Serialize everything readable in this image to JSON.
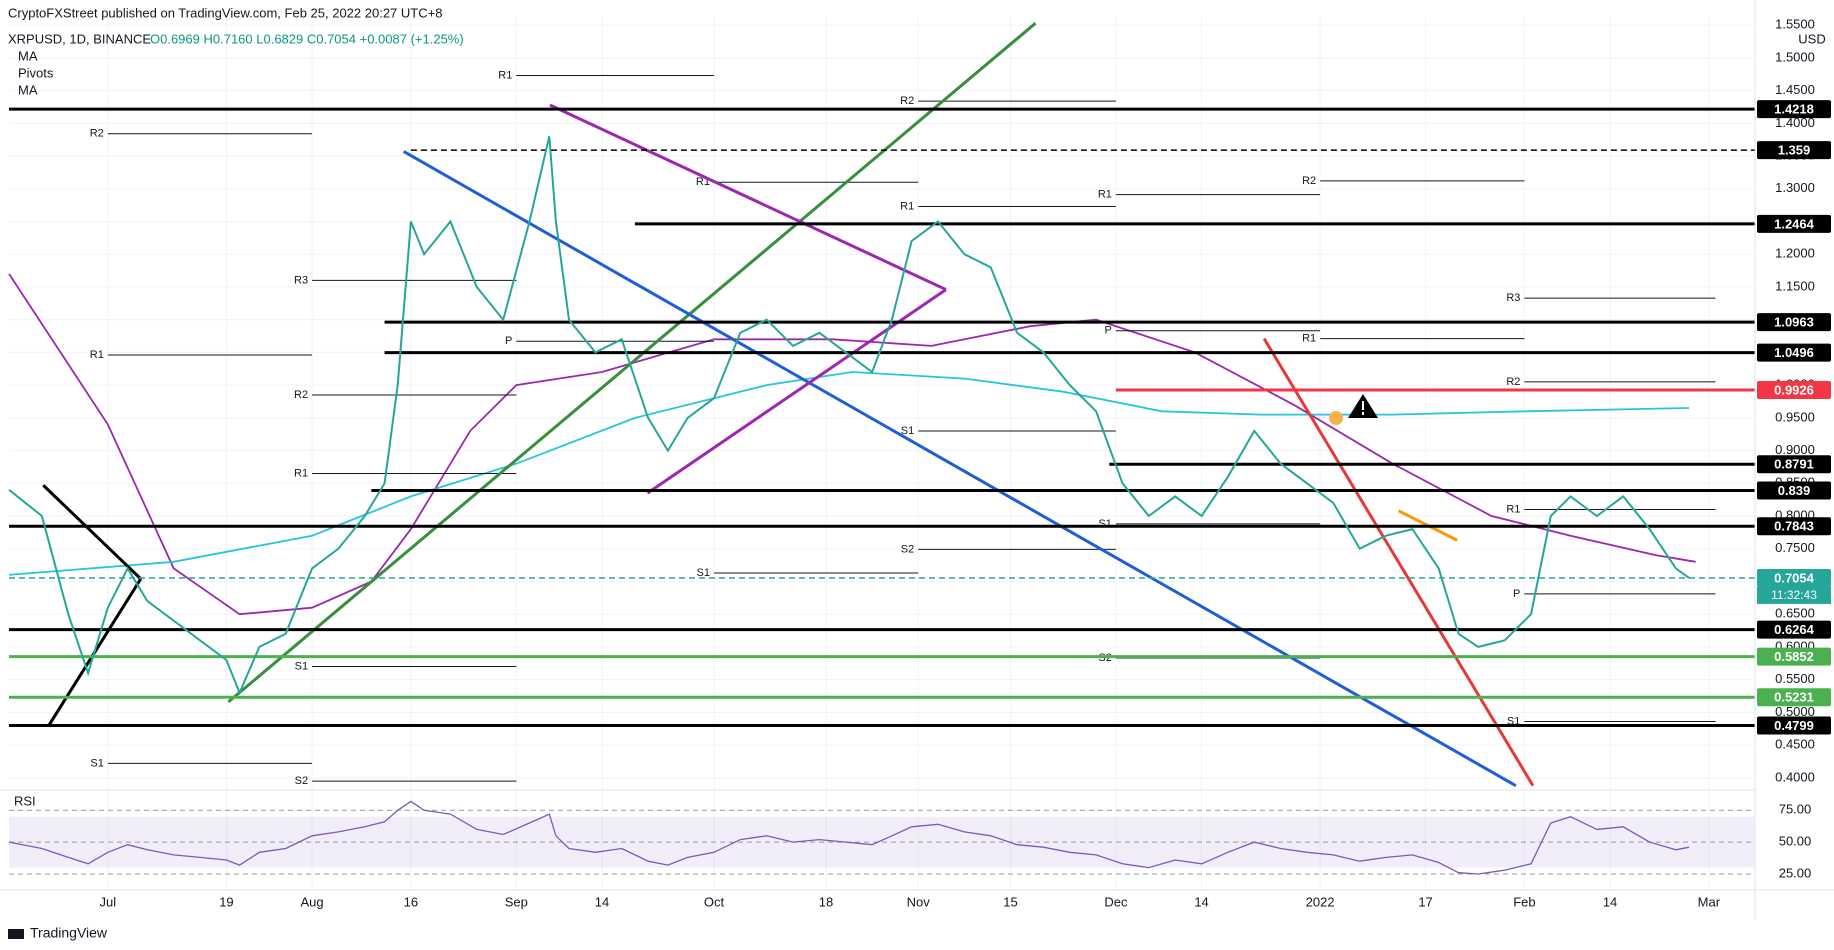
{
  "header": {
    "publisher": "CryptoFXStreet published on TradingView.com, Feb 25, 2022 20:27 UTC+8",
    "symbol": "XRPUSD, 1D, BINANCE",
    "ohlc": "O0.6969 H0.7160 L0.6829 C0.7054 +0.0087 (+1.25%)",
    "indicators": [
      "MA",
      "Pivots",
      "MA"
    ],
    "currency": "USD",
    "countdown": "11:32:43",
    "footer": "TradingView"
  },
  "chart_data": [
    {
      "type": "line",
      "x": [
        -15,
        -10,
        -6,
        -3,
        0,
        3,
        6,
        10,
        14,
        18,
        20,
        23,
        27,
        31,
        35,
        39,
        42,
        44,
        46,
        48,
        52,
        56,
        60,
        64,
        67,
        68,
        70,
        74,
        78,
        82,
        85,
        88,
        92,
        96,
        100,
        104,
        108,
        112,
        116,
        119,
        122,
        126,
        130,
        134,
        138,
        142,
        146,
        150,
        154,
        158,
        162,
        166,
        170,
        174,
        178,
        182,
        186,
        190,
        194,
        198,
        202,
        205,
        208,
        212,
        216,
        219,
        222,
        226,
        230,
        234,
        238,
        240
      ],
      "series": [
        {
          "name": "XRPUSD",
          "color": "#26a69a",
          "values": [
            0.84,
            0.8,
            0.65,
            0.56,
            0.66,
            0.72,
            0.67,
            0.64,
            0.61,
            0.58,
            0.53,
            0.6,
            0.62,
            0.72,
            0.75,
            0.8,
            0.85,
            1.0,
            1.25,
            1.2,
            1.25,
            1.15,
            1.1,
            1.25,
            1.38,
            1.25,
            1.1,
            1.05,
            1.07,
            0.95,
            0.9,
            0.95,
            0.98,
            1.08,
            1.1,
            1.06,
            1.08,
            1.05,
            1.02,
            1.1,
            1.22,
            1.25,
            1.2,
            1.18,
            1.08,
            1.05,
            1.0,
            0.96,
            0.85,
            0.8,
            0.83,
            0.8,
            0.86,
            0.93,
            0.88,
            0.85,
            0.82,
            0.75,
            0.77,
            0.78,
            0.72,
            0.62,
            0.6,
            0.61,
            0.65,
            0.8,
            0.83,
            0.8,
            0.83,
            0.78,
            0.72,
            0.7054
          ]
        }
      ],
      "moving_averages": [
        {
          "name": "MA",
          "color": "#9c27b0",
          "x": [
            -15,
            0,
            10,
            20,
            31,
            40,
            46,
            55,
            62,
            75,
            92,
            110,
            125,
            140,
            150,
            165,
            180,
            195,
            210,
            222,
            235,
            241
          ],
          "values": [
            1.17,
            0.94,
            0.72,
            0.65,
            0.66,
            0.7,
            0.78,
            0.93,
            1.0,
            1.02,
            1.07,
            1.07,
            1.06,
            1.09,
            1.1,
            1.05,
            0.97,
            0.88,
            0.8,
            0.77,
            0.74,
            0.73
          ]
        },
        {
          "name": "MA",
          "color": "#26c6da",
          "x": [
            -15,
            10,
            31,
            46,
            62,
            80,
            100,
            113,
            130,
            145,
            160,
            175,
            195,
            215,
            240
          ],
          "values": [
            0.71,
            0.73,
            0.77,
            0.83,
            0.88,
            0.95,
            1.0,
            1.02,
            1.01,
            0.99,
            0.96,
            0.955,
            0.955,
            0.96,
            0.965
          ]
        }
      ],
      "trendlines": [
        {
          "color": "#388e3c",
          "x": [
            18.3,
            140.8
          ],
          "values": [
            0.516,
            1.553
          ]
        },
        {
          "color": "#1e5fd8",
          "x": [
            44.9,
            213.7
          ],
          "values": [
            1.357,
            0.388
          ]
        },
        {
          "color": "#e53935",
          "x": [
            175.5,
            216.3
          ],
          "values": [
            1.071,
            0.388
          ]
        },
        {
          "color": "#9c27b0",
          "x": [
            67.1,
            127.2
          ],
          "values": [
            1.428,
            1.146
          ]
        },
        {
          "color": "#9c27b0",
          "x": [
            81.9,
            127.2
          ],
          "values": [
            0.835,
            1.146
          ]
        },
        {
          "color": "#ff9800",
          "x": [
            195.9,
            204.8
          ],
          "values": [
            0.808,
            0.763
          ]
        },
        {
          "color": "#000000",
          "x": [
            -9.8,
            5
          ],
          "values": [
            0.847,
            0.704
          ]
        },
        {
          "color": "#000000",
          "x": [
            5,
            -8.9
          ],
          "values": [
            0.704,
            0.481
          ]
        }
      ],
      "levels": [
        {
          "value": 1.4218,
          "color": "#000000",
          "x_start": -15
        },
        {
          "value": 1.359,
          "color": "#000000",
          "x_start": 46,
          "dashed": true
        },
        {
          "value": 1.2464,
          "color": "#000000",
          "x_start": 80
        },
        {
          "value": 1.0963,
          "color": "#000000",
          "x_start": 42
        },
        {
          "value": 1.0496,
          "color": "#000000",
          "x_start": 42
        },
        {
          "value": 0.9926,
          "color": "#f23645",
          "x_start": 153
        },
        {
          "value": 0.8791,
          "color": "#000000",
          "x_start": 152
        },
        {
          "value": 0.839,
          "color": "#000000",
          "x_start": 40
        },
        {
          "value": 0.7843,
          "color": "#000000",
          "x_start": -15
        },
        {
          "value": 0.7054,
          "color": "#26a69a",
          "x_start": -15,
          "dashed": true
        },
        {
          "value": 0.6264,
          "color": "#000000",
          "x_start": -15
        },
        {
          "value": 0.5852,
          "color": "#4caf50",
          "x_start": -15
        },
        {
          "value": 0.5231,
          "color": "#4caf50",
          "x_start": -15
        },
        {
          "value": 0.4799,
          "color": "#000000",
          "x_start": -15
        }
      ],
      "pivots": [
        {
          "label": "R1",
          "x": [
            62,
            92
          ],
          "value": 1.473
        },
        {
          "label": "R2",
          "x": [
            0,
            31
          ],
          "value": 1.384
        },
        {
          "label": "R3",
          "x": [
            31,
            62
          ],
          "value": 1.16
        },
        {
          "label": "R1",
          "x": [
            0,
            31
          ],
          "value": 1.046
        },
        {
          "label": "R2",
          "x": [
            31,
            62
          ],
          "value": 0.985
        },
        {
          "label": "R1",
          "x": [
            31,
            62
          ],
          "value": 0.865
        },
        {
          "label": "S1",
          "x": [
            31,
            62
          ],
          "value": 0.57
        },
        {
          "label": "S2",
          "x": [
            31,
            62
          ],
          "value": 0.395
        },
        {
          "label": "S1",
          "x": [
            0,
            31
          ],
          "value": 0.422
        },
        {
          "label": "R1",
          "x": [
            92,
            123
          ],
          "value": 1.31
        },
        {
          "label": "P",
          "x": [
            62,
            92
          ],
          "value": 1.067
        },
        {
          "label": "S1",
          "x": [
            92,
            123
          ],
          "value": 0.713
        },
        {
          "label": "R2",
          "x": [
            123,
            153
          ],
          "value": 1.434
        },
        {
          "label": "R1",
          "x": [
            123,
            153
          ],
          "value": 1.273
        },
        {
          "label": "S1",
          "x": [
            123,
            153
          ],
          "value": 0.93
        },
        {
          "label": "S2",
          "x": [
            123,
            153
          ],
          "value": 0.749
        },
        {
          "label": "R1",
          "x": [
            153,
            184
          ],
          "value": 1.291
        },
        {
          "label": "P",
          "x": [
            153,
            184
          ],
          "value": 1.083
        },
        {
          "label": "S1",
          "x": [
            153,
            184
          ],
          "value": 0.788
        },
        {
          "label": "S2",
          "x": [
            153,
            184
          ],
          "value": 0.583
        },
        {
          "label": "R2",
          "x": [
            184,
            215
          ],
          "value": 1.312
        },
        {
          "label": "R1",
          "x": [
            184,
            215
          ],
          "value": 1.071
        },
        {
          "label": "R3",
          "x": [
            215,
            244
          ],
          "value": 1.133
        },
        {
          "label": "R2",
          "x": [
            215,
            244
          ],
          "value": 1.005
        },
        {
          "label": "R1",
          "x": [
            215,
            244
          ],
          "value": 0.81
        },
        {
          "label": "P",
          "x": [
            215,
            244
          ],
          "value": 0.681
        },
        {
          "label": "S1",
          "x": [
            215,
            244
          ],
          "value": 0.486
        }
      ],
      "xlim": [
        -15,
        250
      ],
      "xticks": [
        {
          "value": 0,
          "label": "Jul"
        },
        {
          "value": 18,
          "label": "19"
        },
        {
          "value": 31,
          "label": "Aug"
        },
        {
          "value": 46,
          "label": "16"
        },
        {
          "value": 62,
          "label": "Sep"
        },
        {
          "value": 75,
          "label": "14"
        },
        {
          "value": 92,
          "label": "Oct"
        },
        {
          "value": 109,
          "label": "18"
        },
        {
          "value": 123,
          "label": "Nov"
        },
        {
          "value": 137,
          "label": "15"
        },
        {
          "value": 153,
          "label": "Dec"
        },
        {
          "value": 166,
          "label": "14"
        },
        {
          "value": 184,
          "label": "2022"
        },
        {
          "value": 200,
          "label": "17"
        },
        {
          "value": 215,
          "label": "Feb"
        },
        {
          "value": 228,
          "label": "14"
        },
        {
          "value": 243,
          "label": "Mar"
        }
      ],
      "ylim": [
        0.3875,
        1.564
      ],
      "yticks": [
        {
          "value": 0.4,
          "label": "0.4000"
        },
        {
          "value": 0.45,
          "label": "0.4500"
        },
        {
          "value": 0.5,
          "label": "0.5000"
        },
        {
          "value": 0.55,
          "label": "0.5500"
        },
        {
          "value": 0.6,
          "label": "0.6000"
        },
        {
          "value": 0.65,
          "label": "0.6500"
        },
        {
          "value": 0.7,
          "label": "0.7000"
        },
        {
          "value": 0.75,
          "label": "0.7500"
        },
        {
          "value": 0.8,
          "label": "0.8000"
        },
        {
          "value": 0.85,
          "label": "0.8500"
        },
        {
          "value": 0.9,
          "label": "0.9000"
        },
        {
          "value": 0.95,
          "label": "0.9500"
        },
        {
          "value": 1.0,
          "label": "1.0000"
        },
        {
          "value": 1.05,
          "label": "1.0500"
        },
        {
          "value": 1.1,
          "label": "1.1000"
        },
        {
          "value": 1.15,
          "label": "1.1500"
        },
        {
          "value": 1.2,
          "label": "1.2000"
        },
        {
          "value": 1.25,
          "label": "1.2500"
        },
        {
          "value": 1.3,
          "label": "1.3000"
        },
        {
          "value": 1.35,
          "label": "1.3500"
        },
        {
          "value": 1.4,
          "label": "1.4000"
        },
        {
          "value": 1.45,
          "label": "1.4500"
        },
        {
          "value": 1.5,
          "label": "1.5000"
        },
        {
          "value": 1.55,
          "label": "1.5500"
        }
      ],
      "grid": true
    },
    {
      "type": "line",
      "title": "RSI",
      "x": [
        -15,
        -10,
        -6,
        -3,
        0,
        3,
        6,
        10,
        14,
        18,
        20,
        23,
        27,
        31,
        35,
        39,
        42,
        44,
        46,
        48,
        52,
        56,
        60,
        64,
        67,
        68,
        70,
        74,
        78,
        82,
        85,
        88,
        92,
        96,
        100,
        104,
        108,
        112,
        116,
        119,
        122,
        126,
        130,
        134,
        138,
        142,
        146,
        150,
        154,
        158,
        162,
        166,
        170,
        174,
        178,
        182,
        186,
        190,
        194,
        198,
        202,
        205,
        208,
        212,
        216,
        219,
        222,
        226,
        230,
        234,
        238,
        240
      ],
      "series": [
        {
          "name": "RSI",
          "color": "#7e57c2",
          "values": [
            50,
            45,
            38,
            33,
            42,
            48,
            44,
            40,
            38,
            36,
            32,
            42,
            45,
            55,
            58,
            62,
            66,
            75,
            82,
            75,
            72,
            60,
            56,
            65,
            72,
            55,
            45,
            42,
            45,
            35,
            32,
            38,
            42,
            52,
            55,
            50,
            52,
            50,
            48,
            55,
            62,
            64,
            58,
            55,
            48,
            46,
            42,
            40,
            33,
            30,
            36,
            33,
            42,
            50,
            45,
            42,
            40,
            35,
            38,
            40,
            34,
            26,
            25,
            28,
            33,
            65,
            70,
            60,
            62,
            50,
            44,
            46
          ]
        }
      ],
      "band": [
        30,
        70
      ],
      "xlim": [
        -15,
        250
      ],
      "ylim": [
        14,
        87
      ],
      "yticks": [
        {
          "value": 25,
          "label": "25.00"
        },
        {
          "value": 50,
          "label": "50.00"
        },
        {
          "value": 75,
          "label": "75.00"
        }
      ]
    }
  ]
}
